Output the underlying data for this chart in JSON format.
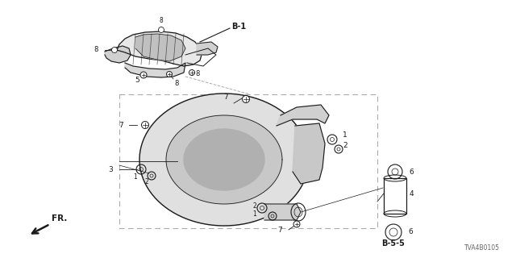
{
  "bg_color": "#ffffff",
  "fig_width": 6.4,
  "fig_height": 3.2,
  "dpi": 100,
  "part_number": "TVA4B0105",
  "label_B1": "B-1",
  "label_B55": "B-5-5",
  "label_FR": "FR.",
  "color_main": "#1a1a1a",
  "color_gray": "#aaaaaa",
  "color_lt": "#888888"
}
